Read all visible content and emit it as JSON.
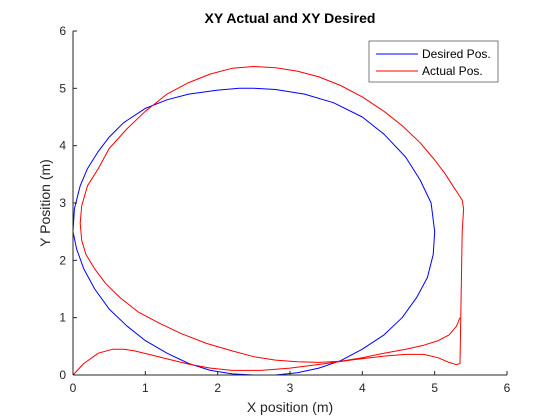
{
  "chart_data": {
    "type": "line",
    "title": "XY Actual and XY Desired",
    "xlabel": "X position (m)",
    "ylabel": "Y Position (m)",
    "xlim": [
      0,
      6
    ],
    "ylim": [
      0,
      6
    ],
    "xticks": [
      "0",
      "1",
      "2",
      "3",
      "4",
      "5",
      "6"
    ],
    "yticks": [
      "0",
      "1",
      "2",
      "3",
      "4",
      "5",
      "6"
    ],
    "grid": false,
    "legend_position": "top-right",
    "series": [
      {
        "name": "Desired Pos.",
        "color": "#0000ff",
        "x": [
          0.0,
          0.02,
          0.1,
          0.2,
          0.35,
          0.5,
          0.7,
          1.0,
          1.3,
          1.6,
          2.0,
          2.3,
          2.5,
          2.8,
          3.2,
          3.6,
          4.0,
          4.3,
          4.6,
          4.8,
          4.95,
          5.0,
          4.98,
          4.9,
          4.75,
          4.55,
          4.3,
          4.0,
          3.7,
          3.4,
          3.1,
          2.8,
          2.5,
          2.2,
          1.9,
          1.6,
          1.3,
          1.0,
          0.75,
          0.5,
          0.3,
          0.15,
          0.05,
          0.0
        ],
        "y": [
          2.5,
          2.9,
          3.3,
          3.6,
          3.9,
          4.15,
          4.4,
          4.65,
          4.8,
          4.9,
          4.97,
          5.0,
          5.0,
          4.98,
          4.9,
          4.75,
          4.5,
          4.2,
          3.8,
          3.4,
          3.0,
          2.5,
          2.1,
          1.7,
          1.35,
          1.0,
          0.7,
          0.45,
          0.25,
          0.12,
          0.04,
          0.0,
          0.0,
          0.02,
          0.08,
          0.2,
          0.38,
          0.6,
          0.85,
          1.15,
          1.5,
          1.85,
          2.2,
          2.5
        ]
      },
      {
        "name": "Actual Pos.",
        "color": "#ff0000",
        "x": [
          0.0,
          0.15,
          0.35,
          0.55,
          0.7,
          0.85,
          1.05,
          1.3,
          1.6,
          1.9,
          2.2,
          2.6,
          3.0,
          3.5,
          3.9,
          4.3,
          4.6,
          4.85,
          5.05,
          5.2,
          5.3,
          5.35,
          5.38,
          5.4,
          5.38,
          5.33,
          5.25,
          5.15,
          5.0,
          4.8,
          4.55,
          4.3,
          4.0,
          3.7,
          3.4,
          3.1,
          2.8,
          2.5,
          2.2,
          1.9,
          1.6,
          1.3,
          1.0,
          0.75,
          0.5,
          0.35,
          0.2,
          0.12,
          0.1,
          0.12,
          0.18,
          0.3,
          0.45,
          0.65,
          0.9,
          1.2,
          1.5,
          1.85,
          2.2,
          2.5,
          2.8,
          3.1,
          3.4,
          3.7,
          4.0,
          4.3,
          4.6,
          4.85,
          5.05,
          5.2,
          5.3,
          5.35
        ],
        "y": [
          0.0,
          0.2,
          0.38,
          0.45,
          0.45,
          0.42,
          0.36,
          0.28,
          0.19,
          0.12,
          0.08,
          0.08,
          0.12,
          0.2,
          0.27,
          0.33,
          0.36,
          0.36,
          0.3,
          0.22,
          0.18,
          0.2,
          2.5,
          2.9,
          3.05,
          3.15,
          3.3,
          3.5,
          3.75,
          4.05,
          4.35,
          4.6,
          4.85,
          5.05,
          5.2,
          5.3,
          5.36,
          5.38,
          5.35,
          5.25,
          5.1,
          4.9,
          4.6,
          4.3,
          3.95,
          3.6,
          3.3,
          2.95,
          2.65,
          2.35,
          2.1,
          1.85,
          1.6,
          1.35,
          1.1,
          0.9,
          0.72,
          0.55,
          0.42,
          0.32,
          0.26,
          0.23,
          0.22,
          0.24,
          0.3,
          0.38,
          0.45,
          0.52,
          0.6,
          0.7,
          0.85,
          1.0
        ]
      }
    ]
  }
}
